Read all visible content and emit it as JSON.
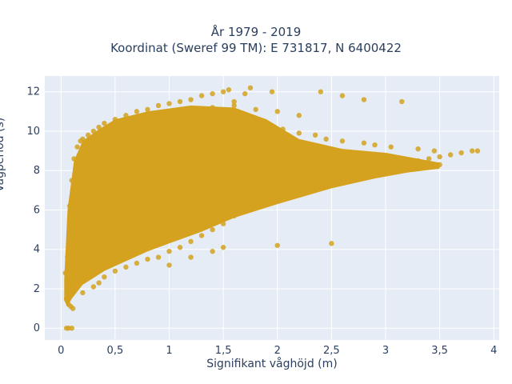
{
  "chart_data": {
    "type": "scatter",
    "title_lines": [
      "År 1979 - 2019",
      "Koordinat (Sweref 99 TM): E 731817, N 6400422"
    ],
    "xlabel": "Signifikant våghöjd (m)",
    "ylabel": "Vågperiod (s)",
    "xlim": [
      -0.15,
      4.05
    ],
    "ylim": [
      -0.6,
      12.8
    ],
    "xticks": [
      0,
      0.5,
      1,
      1.5,
      2,
      2.5,
      3,
      3.5,
      4
    ],
    "xtick_labels": [
      "0",
      "0,5",
      "1",
      "1,5",
      "2",
      "2,5",
      "3",
      "3,5",
      "4"
    ],
    "yticks": [
      0,
      2,
      4,
      6,
      8,
      10,
      12
    ],
    "ytick_labels": [
      "0",
      "2",
      "4",
      "6",
      "8",
      "10",
      "12"
    ],
    "grid": true,
    "background_color": "#E5ECF6",
    "marker_color": "#D4A21E",
    "series": [
      {
        "x": [
          0.04,
          0.06,
          0.08,
          0.1,
          0.05,
          0.07,
          0.09,
          0.11,
          0.05,
          0.07,
          0.1,
          0.08,
          0.1,
          0.12,
          0.15,
          0.18,
          0.2,
          0.25,
          0.3,
          0.35,
          0.4,
          0.5,
          0.6,
          0.7,
          0.8,
          0.9,
          1.0,
          1.1,
          1.2,
          1.3,
          1.4,
          1.5,
          1.55,
          1.6,
          1.75,
          1.95,
          0.2,
          0.3,
          0.35,
          0.4,
          0.5,
          0.6,
          0.7,
          0.8,
          0.9,
          1.0,
          1.1,
          1.2,
          1.3,
          1.4,
          1.5,
          1.6,
          1.7,
          1.8,
          1.9,
          2.0,
          2.1,
          2.2,
          2.3,
          2.4,
          2.5,
          2.6,
          2.7,
          2.8,
          2.9,
          3.0,
          3.1,
          3.2,
          3.3,
          3.4,
          3.5,
          3.6,
          3.7,
          3.8,
          3.85,
          0.1,
          0.12,
          0.15,
          0.2,
          0.3,
          0.4,
          0.5,
          0.6,
          0.8,
          1.0,
          1.2,
          1.4,
          1.6,
          1.8,
          2.0,
          2.2,
          2.4,
          2.6,
          2.8,
          3.0,
          3.1,
          3.3,
          3.5,
          1.3,
          1.65,
          1.85,
          2.05,
          2.2,
          2.35,
          2.45,
          2.6,
          2.8,
          2.9,
          3.05,
          3.3,
          3.45,
          1.0,
          1.2,
          1.4,
          1.5,
          2.0,
          2.5,
          0.3,
          0.4,
          0.5,
          0.6,
          0.8,
          0.9,
          1.1,
          1.3,
          1.6,
          2.1,
          2.3,
          0.15,
          0.2,
          0.25,
          0.3,
          0.35,
          0.4,
          0.45,
          0.5,
          0.55,
          0.6,
          0.7,
          0.8,
          0.9,
          1.0,
          1.1,
          1.2,
          1.4,
          1.6,
          1.8,
          2.0,
          2.2,
          2.6,
          2.8,
          1.7,
          2.4,
          3.15
        ],
        "y": [
          2.8,
          3.6,
          4.6,
          5.5,
          1.5,
          1.2,
          1.1,
          1.0,
          0.0,
          0.0,
          0.0,
          6.2,
          7.5,
          8.6,
          9.2,
          9.5,
          9.6,
          9.8,
          10.0,
          10.2,
          10.4,
          10.6,
          10.8,
          11.0,
          11.1,
          11.3,
          11.4,
          11.5,
          11.6,
          11.8,
          11.9,
          12.0,
          12.1,
          11.5,
          12.2,
          12.0,
          1.8,
          2.1,
          2.3,
          2.6,
          2.9,
          3.1,
          3.3,
          3.5,
          3.6,
          3.9,
          4.1,
          4.4,
          4.7,
          5.0,
          5.3,
          5.7,
          6.0,
          6.2,
          6.4,
          6.7,
          7.0,
          7.1,
          7.3,
          7.4,
          7.6,
          7.7,
          7.8,
          7.9,
          8.0,
          8.1,
          8.3,
          8.3,
          8.5,
          8.6,
          8.7,
          8.8,
          8.9,
          9.0,
          9.0,
          2.4,
          4.0,
          6.0,
          7.5,
          8.0,
          8.2,
          8.1,
          8.3,
          8.3,
          8.4,
          8.6,
          8.7,
          8.9,
          9.0,
          9.1,
          9.0,
          8.8,
          8.7,
          8.6,
          8.7,
          8.5,
          8.4,
          8.3,
          10.5,
          10.4,
          10.3,
          10.1,
          9.9,
          9.8,
          9.6,
          9.5,
          9.4,
          9.3,
          9.2,
          9.1,
          9.0,
          3.2,
          3.6,
          3.9,
          4.1,
          4.2,
          4.3,
          5.0,
          5.5,
          6.0,
          6.5,
          7.0,
          7.5,
          8.0,
          8.5,
          9.0,
          9.5,
          9.2,
          5.5,
          6.5,
          7.2,
          7.8,
          8.5,
          9.0,
          9.4,
          9.7,
          9.9,
          10.1,
          10.3,
          10.5,
          10.7,
          10.9,
          11.0,
          11.1,
          11.2,
          11.3,
          11.1,
          11.0,
          10.8,
          11.8,
          11.6,
          11.9,
          12.0,
          11.5
        ]
      }
    ]
  }
}
